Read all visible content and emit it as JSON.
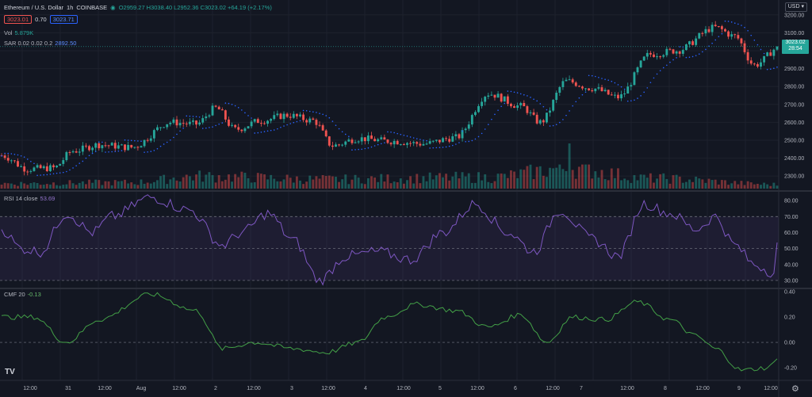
{
  "header": {
    "symbol": "Ethereum / U.S. Dollar",
    "interval": "1h",
    "exchange": "COINBASE",
    "ohlc": {
      "o": "O2959.27",
      "h": "H3038.40",
      "l": "L2952.36",
      "c": "C3023.02",
      "chg": "+64.19 (+2.17%)"
    },
    "bid": "3023.01",
    "spread": "0.70",
    "ask": "3023.71",
    "vol_label": "Vol",
    "vol_value": "5.879K",
    "sar_label": "SAR 0.02 0.02 0.2",
    "sar_value": "2892.50"
  },
  "currency_button": "USD",
  "price_tag": {
    "price": "3023.02",
    "countdown": "28:54"
  },
  "rsi_label": {
    "name": "RSI 14 close",
    "value": "53.69"
  },
  "cmf_label": {
    "name": "CMF 20",
    "value": "-0.13"
  },
  "logo_text": "TV",
  "settings_icon": "gear-icon",
  "colors": {
    "up": "#26a69a",
    "down": "#ef5350",
    "sar": "#2962ff",
    "rsi": "#7e57c2",
    "cmf": "#43a047",
    "bg": "#131722",
    "grid": "#1e222d",
    "text": "#b2b5be"
  },
  "chart_data": [
    {
      "type": "candlestick",
      "title": "Ethereum / U.S. Dollar 1h COINBASE",
      "ylim": [
        2230,
        3230
      ],
      "y_ticks": [
        2300,
        2400,
        2500,
        2600,
        2700,
        2800,
        2900,
        3000,
        3100,
        3200
      ],
      "y_tick_labels": [
        "2300.00",
        "2400.00",
        "2500.00",
        "2600.00",
        "2700.00",
        "2800.00",
        "2900.00",
        "3000.00",
        "3100.00",
        "3200.00"
      ],
      "x_tick_labels": [
        "12:00",
        "31",
        "12:00",
        "Aug",
        "12:00",
        "2",
        "12:00",
        "3",
        "12:00",
        "4",
        "12:00",
        "5",
        "12:00",
        "6",
        "12:00",
        "7",
        "12:00",
        "8",
        "12:00",
        "9",
        "12:00"
      ],
      "bar_count": 240,
      "key_points": [
        [
          0,
          2415
        ],
        [
          8,
          2340
        ],
        [
          16,
          2345
        ],
        [
          22,
          2440
        ],
        [
          30,
          2475
        ],
        [
          40,
          2460
        ],
        [
          52,
          2600
        ],
        [
          60,
          2590
        ],
        [
          66,
          2680
        ],
        [
          72,
          2560
        ],
        [
          80,
          2610
        ],
        [
          88,
          2640
        ],
        [
          96,
          2610
        ],
        [
          102,
          2470
        ],
        [
          110,
          2510
        ],
        [
          120,
          2495
        ],
        [
          130,
          2480
        ],
        [
          140,
          2515
        ],
        [
          150,
          2760
        ],
        [
          160,
          2690
        ],
        [
          166,
          2600
        ],
        [
          174,
          2830
        ],
        [
          182,
          2790
        ],
        [
          190,
          2740
        ],
        [
          200,
          2980
        ],
        [
          208,
          3000
        ],
        [
          220,
          3130
        ],
        [
          226,
          3080
        ],
        [
          232,
          2920
        ],
        [
          240,
          3023
        ]
      ],
      "last_close": 3023.02
    },
    {
      "type": "bar",
      "title": "Vol",
      "last_value": "5.879K",
      "key_points": [
        [
          0,
          0.25
        ],
        [
          40,
          0.3
        ],
        [
          60,
          0.6
        ],
        [
          100,
          0.45
        ],
        [
          150,
          0.55
        ],
        [
          175,
          1.0
        ],
        [
          200,
          0.5
        ],
        [
          240,
          0.2
        ]
      ]
    },
    {
      "type": "line",
      "title": "RSI 14 close",
      "ylim": [
        25,
        85
      ],
      "y_ticks": [
        30,
        40,
        50,
        60,
        70,
        80
      ],
      "y_tick_labels": [
        "30.00",
        "40.00",
        "50.00",
        "60.00",
        "70.00",
        "80.00"
      ],
      "bands": [
        30,
        50,
        70
      ],
      "last_value": 53.69,
      "key_points": [
        [
          0,
          62
        ],
        [
          6,
          50
        ],
        [
          12,
          48
        ],
        [
          20,
          72
        ],
        [
          28,
          60
        ],
        [
          34,
          70
        ],
        [
          46,
          82
        ],
        [
          58,
          74
        ],
        [
          68,
          52
        ],
        [
          74,
          60
        ],
        [
          82,
          72
        ],
        [
          90,
          55
        ],
        [
          98,
          30
        ],
        [
          106,
          45
        ],
        [
          116,
          48
        ],
        [
          126,
          43
        ],
        [
          136,
          60
        ],
        [
          146,
          78
        ],
        [
          156,
          60
        ],
        [
          164,
          48
        ],
        [
          172,
          74
        ],
        [
          182,
          56
        ],
        [
          190,
          45
        ],
        [
          198,
          78
        ],
        [
          206,
          72
        ],
        [
          214,
          62
        ],
        [
          220,
          70
        ],
        [
          226,
          52
        ],
        [
          232,
          40
        ],
        [
          238,
          35
        ],
        [
          240,
          53.69
        ]
      ]
    },
    {
      "type": "line",
      "title": "CMF 20",
      "ylim": [
        -0.3,
        0.42
      ],
      "y_ticks": [
        -0.2,
        0,
        0.2,
        0.4
      ],
      "y_tick_labels": [
        "-0.20",
        "0.00",
        "0.20",
        "0.40"
      ],
      "last_value": -0.13,
      "key_points": [
        [
          0,
          0.2
        ],
        [
          10,
          0.2
        ],
        [
          20,
          0.0
        ],
        [
          30,
          0.18
        ],
        [
          46,
          0.38
        ],
        [
          60,
          0.25
        ],
        [
          68,
          -0.05
        ],
        [
          78,
          0.0
        ],
        [
          90,
          -0.05
        ],
        [
          100,
          -0.08
        ],
        [
          110,
          0.0
        ],
        [
          118,
          0.2
        ],
        [
          128,
          0.3
        ],
        [
          140,
          0.25
        ],
        [
          150,
          0.12
        ],
        [
          160,
          0.22
        ],
        [
          168,
          0.0
        ],
        [
          176,
          0.2
        ],
        [
          186,
          0.18
        ],
        [
          196,
          0.32
        ],
        [
          206,
          0.18
        ],
        [
          214,
          0.05
        ],
        [
          220,
          -0.05
        ],
        [
          228,
          -0.22
        ],
        [
          236,
          -0.2
        ],
        [
          240,
          -0.13
        ]
      ]
    }
  ]
}
